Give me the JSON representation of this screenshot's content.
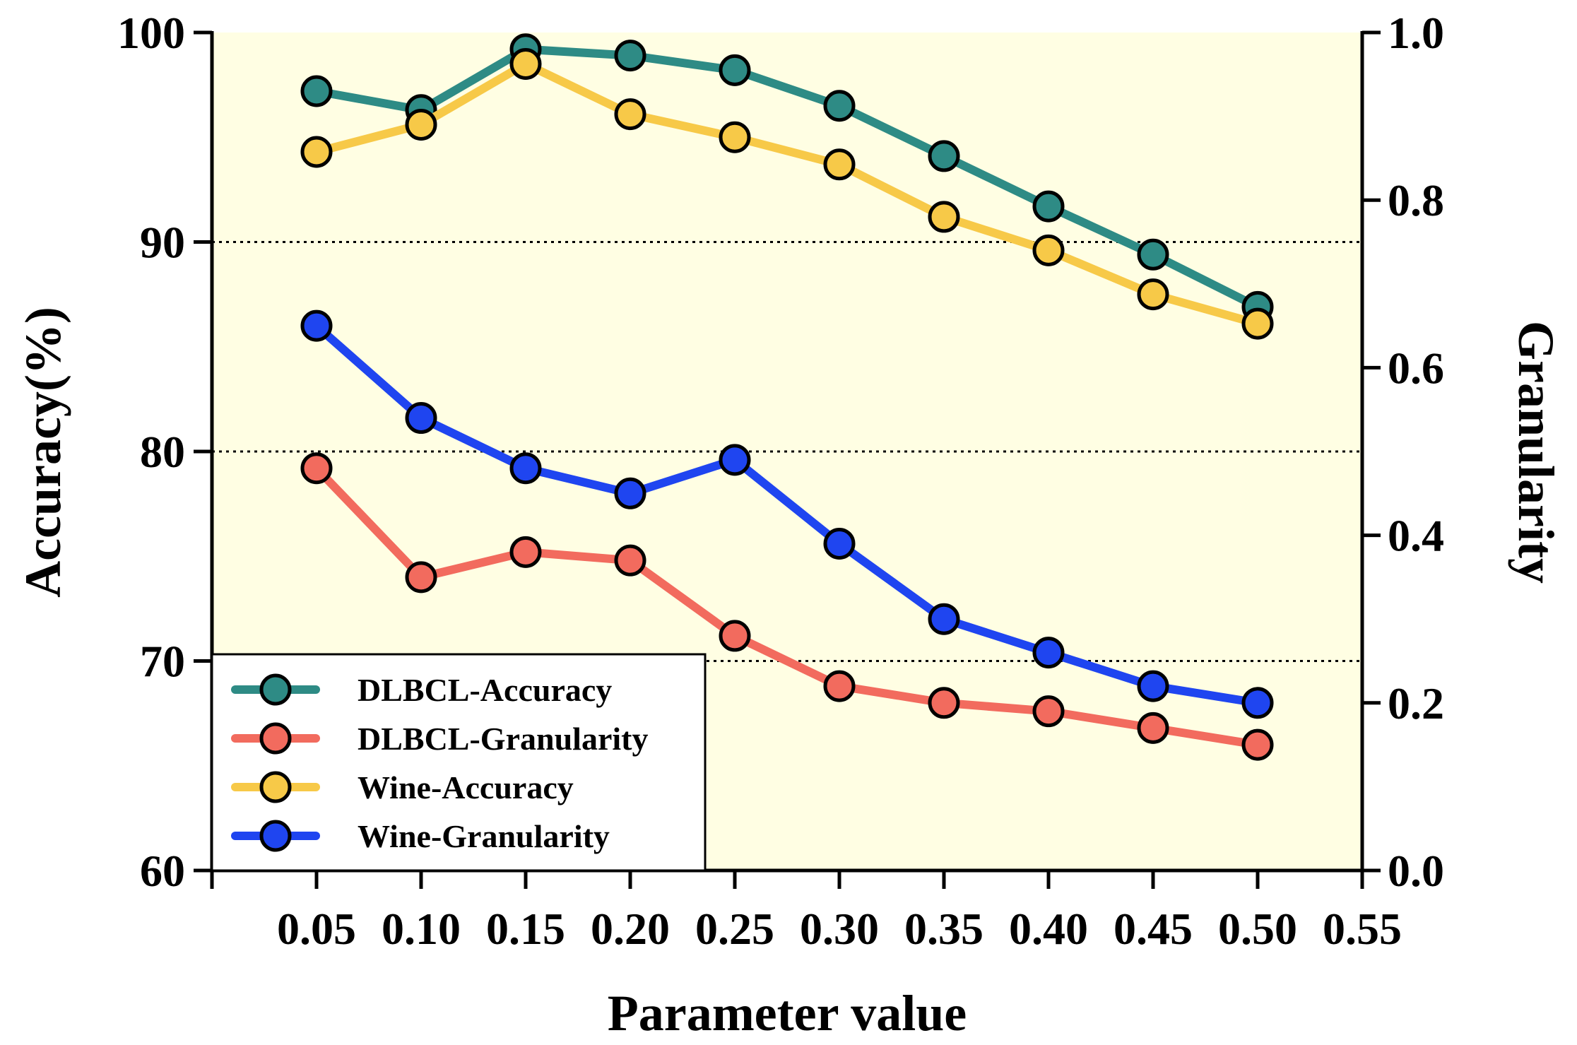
{
  "chart_data": {
    "type": "line",
    "xlabel": "Parameter value",
    "ylabel_left": "Accuracy(%)",
    "ylabel_right": "Granularity",
    "x": [
      0.05,
      0.1,
      0.15,
      0.2,
      0.25,
      0.3,
      0.35,
      0.4,
      0.45,
      0.5
    ],
    "xlim": [
      0.0,
      0.55
    ],
    "x_ticks": [
      "0.05",
      "0.10",
      "0.15",
      "0.20",
      "0.25",
      "0.30",
      "0.35",
      "0.40",
      "0.45",
      "0.50",
      "0.55"
    ],
    "ylim_left": [
      60,
      100
    ],
    "y_ticks_left": [
      "60",
      "70",
      "80",
      "90",
      "100"
    ],
    "ylim_right": [
      0.0,
      1.0
    ],
    "y_ticks_right": [
      "0.0",
      "0.2",
      "0.4",
      "0.6",
      "0.8",
      "1.0"
    ],
    "gridlines_left": [
      70,
      80,
      90
    ],
    "plot_background": "#FFFEE3",
    "legend_position": "bottom-left",
    "series": [
      {
        "name": "DLBCL-Accuracy",
        "axis": "left",
        "color": "#2E8B85",
        "values": [
          97.2,
          96.3,
          99.2,
          98.9,
          98.2,
          96.5,
          94.1,
          91.7,
          89.4,
          86.9
        ]
      },
      {
        "name": "DLBCL-Granularity",
        "axis": "right",
        "color": "#F26B5E",
        "values": [
          0.48,
          0.35,
          0.38,
          0.37,
          0.28,
          0.22,
          0.2,
          0.19,
          0.17,
          0.15
        ]
      },
      {
        "name": "Wine-Accuracy",
        "axis": "left",
        "color": "#F7C948",
        "values": [
          94.3,
          95.6,
          98.5,
          96.1,
          95.0,
          93.7,
          91.2,
          89.6,
          87.5,
          86.1
        ]
      },
      {
        "name": "Wine-Granularity",
        "axis": "right",
        "color": "#1F45F0",
        "values": [
          0.65,
          0.54,
          0.48,
          0.45,
          0.49,
          0.39,
          0.3,
          0.26,
          0.22,
          0.2
        ]
      }
    ]
  }
}
